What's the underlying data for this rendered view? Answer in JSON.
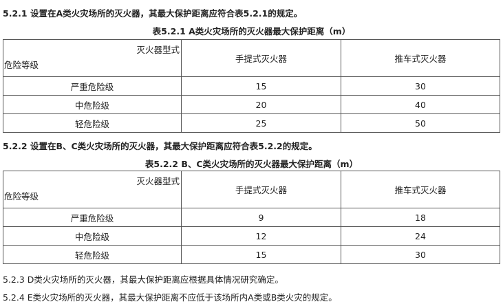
{
  "sections": [
    {
      "heading": "5.2.1 设置在A类火灾场所的灭火器，其最大保护距离应符合表5.2.1的规定。",
      "table": {
        "caption": "表5.2.1 A类火灾场所的灭火器最大保护距离（m）",
        "corner_top": "灭火器型式",
        "corner_bottom": "危险等级",
        "columns": [
          "手提式灭火器",
          "推车式灭火器"
        ],
        "rows": [
          {
            "level": "严重危险级",
            "values": [
              "15",
              "30"
            ]
          },
          {
            "level": "中危险级",
            "values": [
              "20",
              "40"
            ]
          },
          {
            "level": "轻危险级",
            "values": [
              "25",
              "50"
            ]
          }
        ]
      }
    },
    {
      "heading": "5.2.2 设置在B、C类火灾场所的灭火器，其最大保护距离应符合表5.2.2的规定。",
      "table": {
        "caption": "表5.2.2 B、C类火灾场所的灭火器最大保护距离（m）",
        "corner_top": "灭火器型式",
        "corner_bottom": "危险等级",
        "columns": [
          "手提式灭火器",
          "推车式灭火器"
        ],
        "rows": [
          {
            "level": "严重危险级",
            "values": [
              "9",
              "18"
            ]
          },
          {
            "level": "中危险级",
            "values": [
              "12",
              "24"
            ]
          },
          {
            "level": "轻危险级",
            "values": [
              "15",
              "30"
            ]
          }
        ]
      }
    }
  ],
  "notes": [
    "5.2.3 D类火灾场所的灭火器，其最大保护距离应根据具体情况研究确定。",
    "5.2.4 E类火灾场所的灭火器，其最大保护距离不应低于该场所内A类或B类火灾的规定。"
  ]
}
